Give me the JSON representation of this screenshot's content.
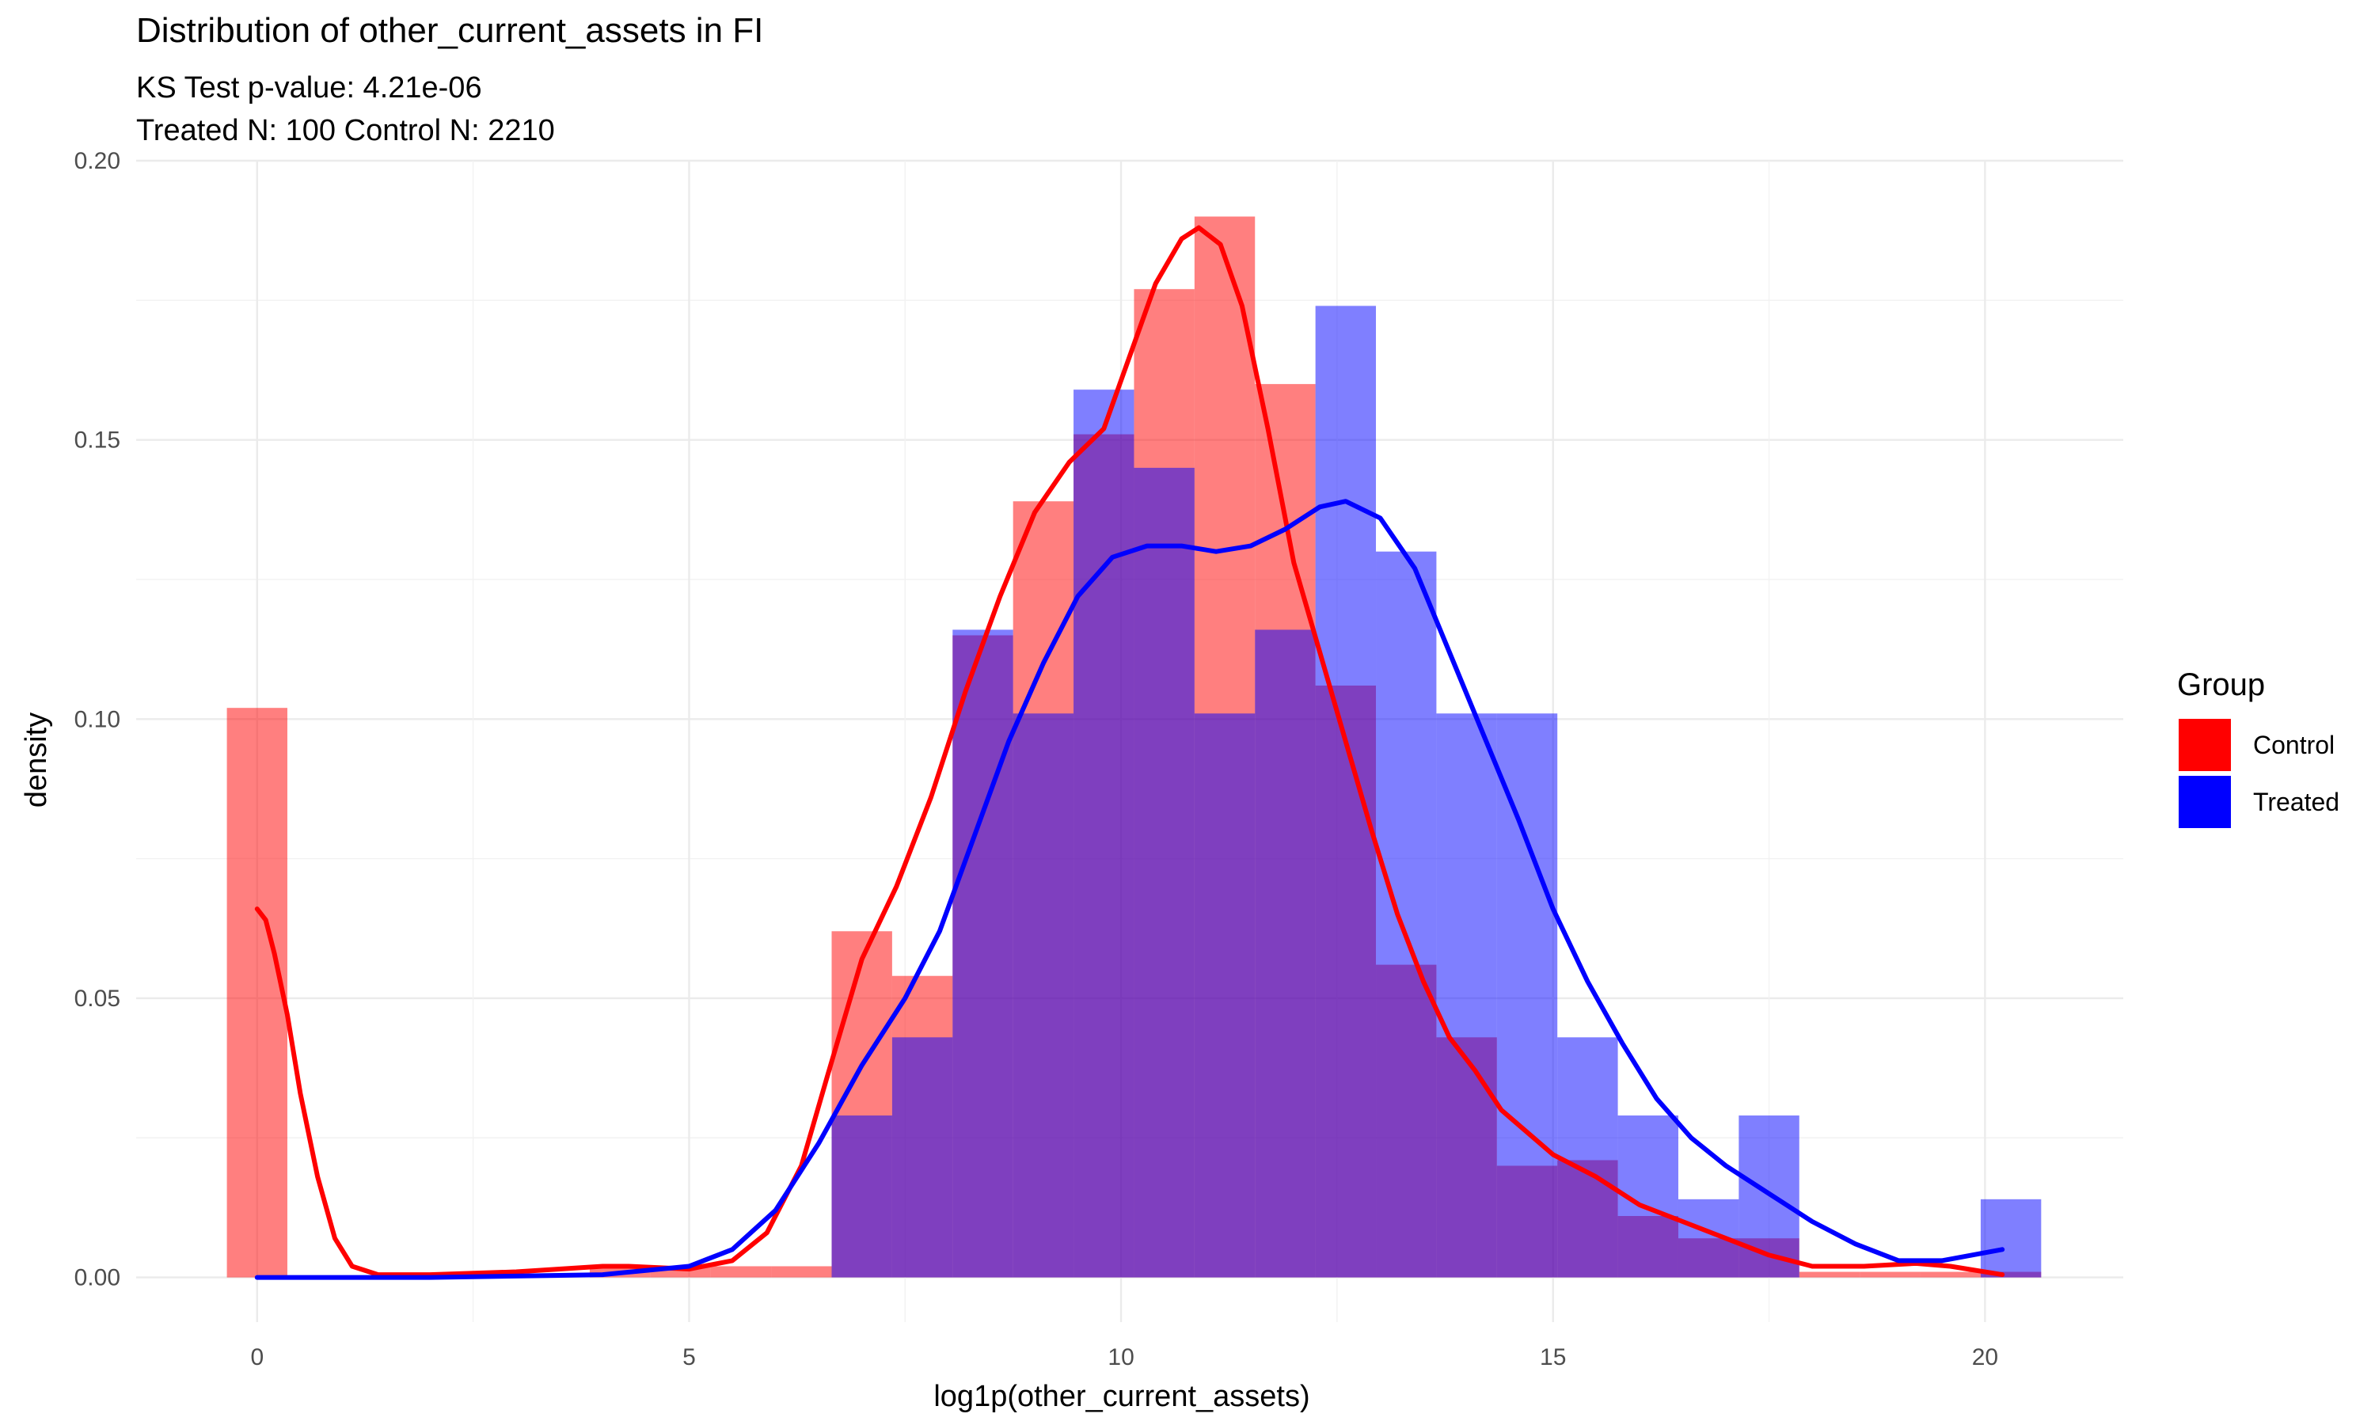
{
  "chart_data": {
    "type": "bar",
    "title": "Distribution of other_current_assets in FI",
    "subtitle_lines": [
      "KS Test p-value: 4.21e-06",
      "Treated N: 100 Control N: 2210"
    ],
    "xlabel": "log1p(other_current_assets)",
    "ylabel": "density",
    "xlim": [
      -1.4,
      21.6
    ],
    "ylim": [
      -0.008,
      0.2
    ],
    "x_ticks": [
      0,
      5,
      10,
      15,
      20
    ],
    "y_ticks": [
      0.0,
      0.05,
      0.1,
      0.15,
      0.2
    ],
    "x_tick_labels": [
      "0",
      "5",
      "10",
      "15",
      "20"
    ],
    "y_tick_labels": [
      "0.00",
      "0.05",
      "0.10",
      "0.15",
      "0.20"
    ],
    "grid": true,
    "bin_width": 0.7,
    "legend": {
      "title": "Group",
      "position": "right",
      "entries": [
        {
          "label": "Control",
          "color": "#ff0000"
        },
        {
          "label": "Treated",
          "color": "#0000ff"
        }
      ]
    },
    "series": [
      {
        "name": "Control",
        "color": "#ff0000",
        "bar_opacity": 0.5,
        "bins": [
          {
            "center": 0.0,
            "density": 0.102
          },
          {
            "center": 4.2,
            "density": 0.002
          },
          {
            "center": 4.9,
            "density": 0.002
          },
          {
            "center": 5.6,
            "density": 0.002
          },
          {
            "center": 6.3,
            "density": 0.002
          },
          {
            "center": 7.0,
            "density": 0.062
          },
          {
            "center": 7.7,
            "density": 0.054
          },
          {
            "center": 8.4,
            "density": 0.115
          },
          {
            "center": 9.1,
            "density": 0.139
          },
          {
            "center": 9.8,
            "density": 0.151
          },
          {
            "center": 10.5,
            "density": 0.177
          },
          {
            "center": 11.2,
            "density": 0.19
          },
          {
            "center": 11.9,
            "density": 0.16
          },
          {
            "center": 12.6,
            "density": 0.106
          },
          {
            "center": 13.3,
            "density": 0.056
          },
          {
            "center": 14.0,
            "density": 0.043
          },
          {
            "center": 14.7,
            "density": 0.02
          },
          {
            "center": 15.4,
            "density": 0.021
          },
          {
            "center": 16.1,
            "density": 0.011
          },
          {
            "center": 16.8,
            "density": 0.007
          },
          {
            "center": 17.5,
            "density": 0.007
          },
          {
            "center": 18.2,
            "density": 0.001
          },
          {
            "center": 18.9,
            "density": 0.001
          },
          {
            "center": 19.6,
            "density": 0.001
          },
          {
            "center": 20.3,
            "density": 0.001
          }
        ],
        "density_curve": [
          [
            0.0,
            0.066
          ],
          [
            0.1,
            0.064
          ],
          [
            0.2,
            0.058
          ],
          [
            0.35,
            0.047
          ],
          [
            0.5,
            0.033
          ],
          [
            0.7,
            0.018
          ],
          [
            0.9,
            0.007
          ],
          [
            1.1,
            0.002
          ],
          [
            1.4,
            0.0005
          ],
          [
            2.0,
            0.0005
          ],
          [
            3.0,
            0.001
          ],
          [
            4.0,
            0.002
          ],
          [
            4.3,
            0.002
          ],
          [
            5.0,
            0.0015
          ],
          [
            5.5,
            0.003
          ],
          [
            5.9,
            0.008
          ],
          [
            6.3,
            0.02
          ],
          [
            6.6,
            0.036
          ],
          [
            7.0,
            0.057
          ],
          [
            7.4,
            0.07
          ],
          [
            7.8,
            0.086
          ],
          [
            8.2,
            0.105
          ],
          [
            8.6,
            0.122
          ],
          [
            9.0,
            0.137
          ],
          [
            9.4,
            0.146
          ],
          [
            9.8,
            0.152
          ],
          [
            10.1,
            0.165
          ],
          [
            10.4,
            0.178
          ],
          [
            10.7,
            0.186
          ],
          [
            10.9,
            0.188
          ],
          [
            11.15,
            0.185
          ],
          [
            11.4,
            0.174
          ],
          [
            11.7,
            0.152
          ],
          [
            12.0,
            0.128
          ],
          [
            12.3,
            0.112
          ],
          [
            12.6,
            0.096
          ],
          [
            12.9,
            0.08
          ],
          [
            13.2,
            0.065
          ],
          [
            13.5,
            0.053
          ],
          [
            13.8,
            0.043
          ],
          [
            14.1,
            0.037
          ],
          [
            14.4,
            0.03
          ],
          [
            14.7,
            0.026
          ],
          [
            15.0,
            0.022
          ],
          [
            15.5,
            0.018
          ],
          [
            16.0,
            0.013
          ],
          [
            16.5,
            0.01
          ],
          [
            17.0,
            0.007
          ],
          [
            17.5,
            0.004
          ],
          [
            18.0,
            0.002
          ],
          [
            18.6,
            0.002
          ],
          [
            19.2,
            0.0025
          ],
          [
            19.6,
            0.002
          ],
          [
            20.2,
            0.0005
          ]
        ]
      },
      {
        "name": "Treated",
        "color": "#0000ff",
        "bar_opacity": 0.5,
        "bins": [
          {
            "center": 7.0,
            "density": 0.029
          },
          {
            "center": 7.7,
            "density": 0.043
          },
          {
            "center": 8.4,
            "density": 0.116
          },
          {
            "center": 9.1,
            "density": 0.101
          },
          {
            "center": 9.8,
            "density": 0.159
          },
          {
            "center": 10.5,
            "density": 0.145
          },
          {
            "center": 11.2,
            "density": 0.101
          },
          {
            "center": 11.9,
            "density": 0.116
          },
          {
            "center": 12.6,
            "density": 0.174
          },
          {
            "center": 13.3,
            "density": 0.13
          },
          {
            "center": 14.0,
            "density": 0.101
          },
          {
            "center": 14.7,
            "density": 0.101
          },
          {
            "center": 15.4,
            "density": 0.043
          },
          {
            "center": 16.1,
            "density": 0.029
          },
          {
            "center": 16.8,
            "density": 0.014
          },
          {
            "center": 17.5,
            "density": 0.029
          },
          {
            "center": 20.3,
            "density": 0.014
          }
        ],
        "density_curve": [
          [
            0.0,
            0.0
          ],
          [
            2.0,
            0.0
          ],
          [
            4.0,
            0.0005
          ],
          [
            5.0,
            0.002
          ],
          [
            5.5,
            0.005
          ],
          [
            6.0,
            0.012
          ],
          [
            6.5,
            0.024
          ],
          [
            7.0,
            0.038
          ],
          [
            7.5,
            0.05
          ],
          [
            7.9,
            0.062
          ],
          [
            8.3,
            0.079
          ],
          [
            8.7,
            0.096
          ],
          [
            9.1,
            0.11
          ],
          [
            9.5,
            0.122
          ],
          [
            9.9,
            0.129
          ],
          [
            10.3,
            0.131
          ],
          [
            10.7,
            0.131
          ],
          [
            11.1,
            0.13
          ],
          [
            11.5,
            0.131
          ],
          [
            11.9,
            0.134
          ],
          [
            12.3,
            0.138
          ],
          [
            12.6,
            0.139
          ],
          [
            13.0,
            0.136
          ],
          [
            13.4,
            0.127
          ],
          [
            13.8,
            0.112
          ],
          [
            14.2,
            0.097
          ],
          [
            14.6,
            0.082
          ],
          [
            15.0,
            0.066
          ],
          [
            15.4,
            0.053
          ],
          [
            15.8,
            0.042
          ],
          [
            16.2,
            0.032
          ],
          [
            16.6,
            0.025
          ],
          [
            17.0,
            0.02
          ],
          [
            17.5,
            0.015
          ],
          [
            18.0,
            0.01
          ],
          [
            18.5,
            0.006
          ],
          [
            19.0,
            0.003
          ],
          [
            19.5,
            0.003
          ],
          [
            20.2,
            0.005
          ]
        ]
      }
    ]
  }
}
